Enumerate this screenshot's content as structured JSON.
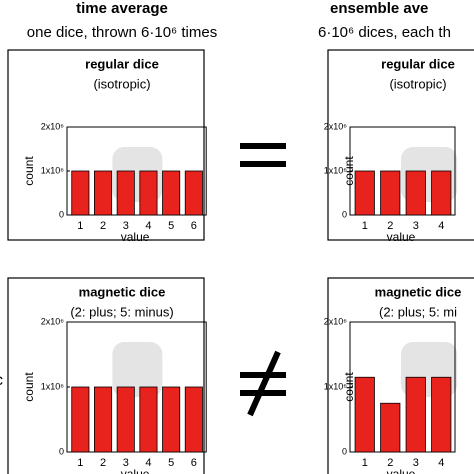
{
  "columns": [
    {
      "title": "time average",
      "subtitle": "one dice, thrown 6·10⁶ times"
    },
    {
      "title": "ensemble ave",
      "subtitle": "6·10⁶ dices, each th"
    }
  ],
  "side_label": "c",
  "chart_data": [
    {
      "type": "bar",
      "title": "regular dice",
      "subtitle": "(isotropic)",
      "x_label": "value",
      "y_label": "count",
      "color": "#e8231e",
      "categories": [
        "1",
        "2",
        "3",
        "4",
        "5",
        "6"
      ],
      "values": [
        1000000,
        1000000,
        1000000,
        1000000,
        1000000,
        1000000
      ],
      "ylim": [
        0,
        2000000
      ],
      "yticks": [
        0,
        {
          "value": 1000000,
          "label": "1x10⁶"
        },
        {
          "value": 2000000,
          "label": "2x10⁶"
        }
      ]
    },
    {
      "type": "bar",
      "title": "regular dice",
      "subtitle": "(isotropic)",
      "x_label": "value",
      "y_label": "count",
      "color": "#e8231e",
      "categories": [
        "1",
        "2",
        "3",
        "4"
      ],
      "values": [
        1000000,
        1000000,
        1000000,
        1000000
      ],
      "ylim": [
        0,
        2000000
      ],
      "yticks": [
        0,
        {
          "value": 1000000,
          "label": "1x10⁶"
        },
        {
          "value": 2000000,
          "label": "2x10⁶"
        }
      ]
    },
    {
      "type": "bar",
      "title": "magnetic dice",
      "subtitle": "(2: plus; 5: minus)",
      "x_label": "value",
      "y_label": "count",
      "color": "#e8231e",
      "categories": [
        "1",
        "2",
        "3",
        "4",
        "5",
        "6"
      ],
      "values": [
        1000000,
        1000000,
        1000000,
        1000000,
        1000000,
        1000000
      ],
      "ylim": [
        0,
        2000000
      ],
      "yticks": [
        0,
        {
          "value": 1000000,
          "label": "1x10⁶"
        },
        {
          "value": 2000000,
          "label": "2x10⁶"
        }
      ]
    },
    {
      "type": "bar",
      "title": "magnetic dice",
      "subtitle": "(2: plus; 5: mi",
      "x_label": "value",
      "y_label": "count",
      "color": "#e8231e",
      "categories": [
        "1",
        "2",
        "3",
        "4"
      ],
      "values": [
        1150000,
        750000,
        1150000,
        1150000
      ],
      "ylim": [
        0,
        2000000
      ],
      "yticks": [
        0,
        {
          "value": 1000000,
          "label": "1x10⁶"
        },
        {
          "value": 2000000,
          "label": "2x10⁶"
        }
      ]
    }
  ]
}
